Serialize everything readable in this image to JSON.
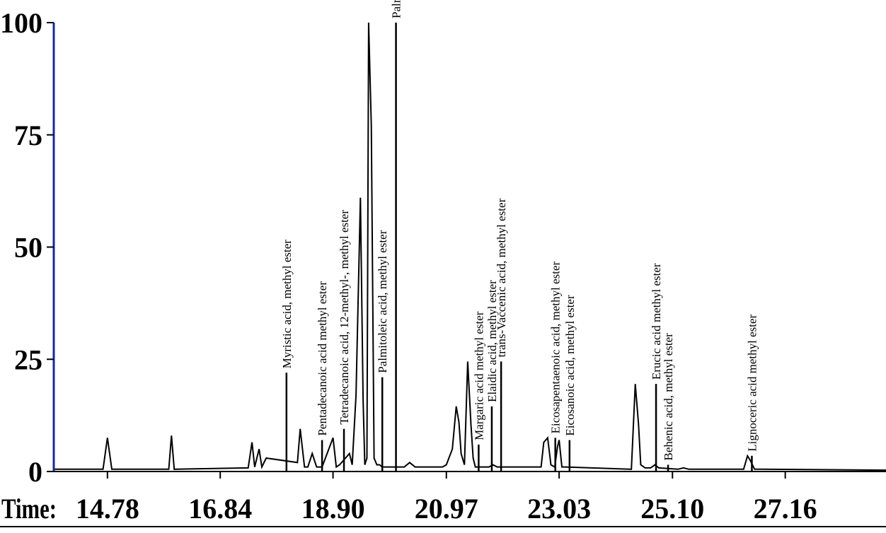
{
  "chart_data": {
    "type": "line",
    "title": "",
    "xlabel": "Time:",
    "ylabel": "",
    "xlim": [
      13.8,
      29.0
    ],
    "ylim": [
      0,
      100
    ],
    "x_ticks": [
      "14.78",
      "16.84",
      "18.90",
      "20.97",
      "23.03",
      "25.10",
      "27.16"
    ],
    "y_ticks": [
      "0",
      "25",
      "50",
      "75",
      "100"
    ],
    "colors": {
      "trace": "#000000",
      "y_axis": "#1a2a9a",
      "x_axis": "#000000"
    },
    "series": [
      {
        "x": [
          13.8,
          14.7,
          14.78,
          14.86,
          15.9,
          15.95,
          16.0,
          17.35,
          17.42,
          17.47,
          17.55,
          17.6,
          17.68,
          18.25,
          18.3,
          18.38,
          18.44,
          18.52,
          18.6,
          18.65,
          18.7,
          18.9,
          18.96,
          19.02,
          19.2,
          19.25,
          19.32,
          19.4,
          19.45,
          19.48,
          19.52,
          19.55,
          19.6,
          19.65,
          19.7,
          19.75,
          19.8,
          20.2,
          20.3,
          20.4,
          20.8,
          20.9,
          20.97,
          21.08,
          21.15,
          21.2,
          21.24,
          21.3,
          21.36,
          21.42,
          21.46,
          21.5,
          21.55,
          21.75,
          21.82,
          21.9,
          22.7,
          22.75,
          22.82,
          22.88,
          22.95,
          23.0,
          23.03,
          23.08,
          23.15,
          24.35,
          24.42,
          24.48,
          24.52,
          24.6,
          24.7,
          24.78,
          24.85,
          25.2,
          25.3,
          25.4,
          26.4,
          26.47,
          26.52,
          26.6,
          26.7,
          29.0
        ],
        "y": [
          0.5,
          0.5,
          7.5,
          0.5,
          0.5,
          8.0,
          0.5,
          0.8,
          6.5,
          1.0,
          5.0,
          1.0,
          3.0,
          2.0,
          9.5,
          1.0,
          1.0,
          4.0,
          1.0,
          1.0,
          1.0,
          7.5,
          1.0,
          1.5,
          4.0,
          1.5,
          17.0,
          61.0,
          16.0,
          1.5,
          3.0,
          100.0,
          77.0,
          3.0,
          1.5,
          1.5,
          1.0,
          1.0,
          2.0,
          1.0,
          1.0,
          1.0,
          1.5,
          5.0,
          14.5,
          11.0,
          4.0,
          1.5,
          24.5,
          10.5,
          3.0,
          1.0,
          1.0,
          1.0,
          1.5,
          1.0,
          1.0,
          6.5,
          7.5,
          1.5,
          1.0,
          5.5,
          7.0,
          1.0,
          1.0,
          0.5,
          19.5,
          10.5,
          1.5,
          0.8,
          0.8,
          1.5,
          0.8,
          0.5,
          0.8,
          0.5,
          0.5,
          3.5,
          2.5,
          0.5,
          0.5,
          0.3
        ]
      }
    ],
    "peaks": [
      {
        "x": 18.05,
        "y": 22.0,
        "label": "Myristic acid, methyl ester"
      },
      {
        "x": 18.7,
        "y": 7.0,
        "label": "Pentadecanoic acid methyl ester"
      },
      {
        "x": 19.1,
        "y": 9.5,
        "label": "Tetradecanoic acid, 12-methyl-, methyl ester"
      },
      {
        "x": 19.8,
        "y": 21.0,
        "label": "Palmitoleic acid, methyl ester"
      },
      {
        "x": 20.05,
        "y": 100.0,
        "label": "Palmitic acid, methyl ester"
      },
      {
        "x": 21.56,
        "y": 6.0,
        "label": "Margaric acid methyl ester"
      },
      {
        "x": 21.8,
        "y": 14.5,
        "label": "Elaidic acid, methyl ester"
      },
      {
        "x": 21.97,
        "y": 24.5,
        "label": "trans-Vaccenic acid, methyl ester"
      },
      {
        "x": 22.96,
        "y": 7.5,
        "label": "Eicosapentaenoic acid, methyl ester"
      },
      {
        "x": 23.22,
        "y": 7.0,
        "label": "Eicosanoic acid, methyl ester"
      },
      {
        "x": 24.8,
        "y": 19.5,
        "label": "Erucic acid methyl ester"
      },
      {
        "x": 25.02,
        "y": 1.5,
        "label": "Behenic acid, methyl ester"
      },
      {
        "x": 26.55,
        "y": 3.5,
        "label": "Lignoceric acid methyl ester"
      }
    ]
  }
}
